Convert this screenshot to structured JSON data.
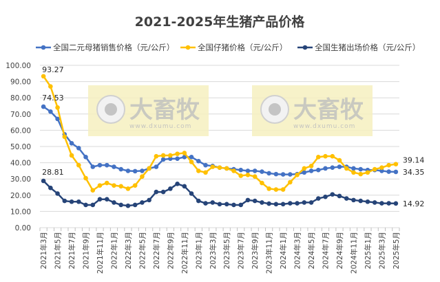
{
  "chart_data": {
    "type": "line",
    "title": "2021-2025年生猪产品价格",
    "legend_position": "top",
    "grid": true,
    "ylim": [
      0,
      100
    ],
    "yticks": [
      "0.00",
      "10.00",
      "20.00",
      "30.00",
      "40.00",
      "50.00",
      "60.00",
      "70.00",
      "80.00",
      "90.00",
      "100.00"
    ],
    "x": [
      "2021年3月",
      "2021年4月",
      "2021年5月",
      "2021年6月",
      "2021年7月",
      "2021年8月",
      "2021年9月",
      "2021年10月",
      "2021年11月",
      "2021年12月",
      "2022年1月",
      "2022年2月",
      "2022年3月",
      "2022年4月",
      "2022年5月",
      "2022年6月",
      "2022年7月",
      "2022年8月",
      "2022年9月",
      "2022年10月",
      "2022年11月",
      "2022年12月",
      "2023年1月",
      "2023年2月",
      "2023年3月",
      "2023年4月",
      "2023年5月",
      "2023年6月",
      "2023年7月",
      "2023年8月",
      "2023年9月",
      "2023年10月",
      "2023年11月",
      "2023年12月",
      "2024年1月",
      "2024年2月",
      "2024年3月",
      "2024年4月",
      "2024年5月",
      "2024年6月",
      "2024年7月",
      "2024年8月",
      "2024年9月",
      "2024年10月",
      "2024年11月",
      "2024年12月",
      "2025年1月",
      "2025年2月",
      "2025年3月",
      "2025年4月",
      "2025年5月"
    ],
    "xtick_labels_every": 2,
    "series": [
      {
        "name": "全国二元母猪销售价格（元/公斤）",
        "color": "#4472C4",
        "values": [
          74.53,
          71.5,
          67,
          57.5,
          52,
          49,
          43.5,
          37.5,
          38.5,
          38.5,
          37.5,
          36,
          35,
          34.8,
          35,
          36.5,
          37.5,
          42,
          42.5,
          42.5,
          43.5,
          43.5,
          41,
          38.5,
          38,
          37,
          36.5,
          36,
          35.5,
          35,
          35,
          34.5,
          33.5,
          33,
          32.8,
          32.8,
          33,
          34,
          35,
          35.5,
          36.5,
          37,
          37.5,
          37.5,
          36.5,
          36,
          35.5,
          35.5,
          35,
          34.5,
          34.35
        ],
        "labels": {
          "first": "74.53",
          "last": "34.35"
        }
      },
      {
        "name": "全国仔猪价格（元/公斤）",
        "color": "#FFC000",
        "values": [
          93.27,
          87,
          74,
          56,
          44.5,
          38.5,
          30.5,
          23,
          26,
          27.5,
          26,
          25.5,
          24,
          26,
          31.5,
          36.5,
          44,
          44.5,
          44.5,
          45.5,
          46,
          40.5,
          35,
          34,
          37.5,
          37,
          36.5,
          35,
          32,
          32.5,
          31.5,
          27.5,
          24,
          23.5,
          23.5,
          28,
          32.5,
          36.5,
          38,
          43.5,
          44,
          44,
          41.5,
          36.5,
          34,
          33,
          34,
          36,
          37,
          38.5,
          39.14
        ],
        "labels": {
          "first": "93.27",
          "last": "39.14"
        }
      },
      {
        "name": "全国生猪出场价格（元/公斤）",
        "color": "#264478",
        "values": [
          28.81,
          24.5,
          21,
          16.5,
          16,
          16,
          14,
          14,
          17.5,
          17.5,
          15.5,
          14,
          13.5,
          14,
          15.5,
          17,
          22,
          22,
          24,
          27,
          25.5,
          21,
          16.5,
          15,
          15.5,
          14.5,
          14.5,
          14,
          14,
          17,
          16.5,
          15.5,
          14.8,
          14.5,
          14.5,
          15,
          15,
          15.5,
          15.5,
          18,
          19,
          20.5,
          19.5,
          18,
          17,
          16.5,
          16,
          15.5,
          15,
          15,
          14.92
        ],
        "labels": {
          "first": "28.81",
          "last": "14.92"
        }
      }
    ]
  },
  "watermark": {
    "brand": "大畜牧",
    "url": "www.dxumu.com"
  }
}
